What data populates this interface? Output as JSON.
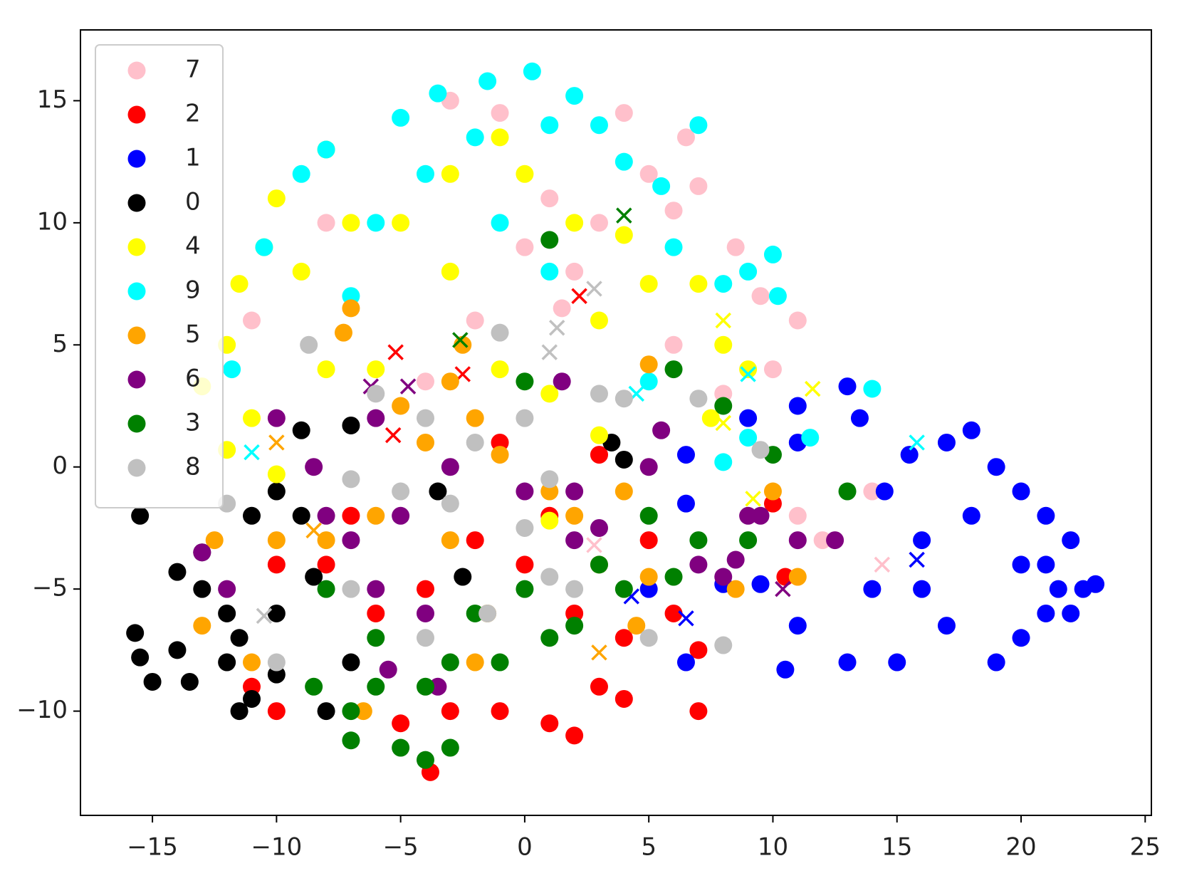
{
  "chart_data": {
    "type": "scatter",
    "xlim": [
      -17.9,
      25.25
    ],
    "ylim": [
      -14.27,
      17.9
    ],
    "xticks": [
      {
        "value": -15,
        "label": "−15"
      },
      {
        "value": -10,
        "label": "−10"
      },
      {
        "value": -5,
        "label": "−5"
      },
      0,
      5,
      10,
      15,
      20,
      25
    ],
    "yticks": [
      {
        "value": -10,
        "label": "−10"
      },
      {
        "value": -5,
        "label": "−5"
      },
      0,
      5,
      10,
      15
    ],
    "legend": "upper left",
    "series": [
      {
        "name": "7",
        "color": "#ffc0cb",
        "x": [
          -3,
          -1,
          4,
          6.5,
          5,
          6,
          7,
          8.5,
          9.5,
          10,
          11,
          2,
          0,
          -2,
          -4,
          1,
          3,
          8,
          14,
          12,
          11,
          -8,
          -11,
          6,
          3,
          1.5
        ],
        "y": [
          15,
          14.5,
          14.5,
          13.5,
          12,
          10.5,
          11.5,
          9,
          7,
          4,
          6,
          8,
          9,
          6,
          3.5,
          11,
          10,
          3,
          -1,
          -3,
          -2,
          10,
          6,
          5,
          0.5,
          6.5
        ],
        "crosses": {
          "x": [
            14.4,
            2.8
          ],
          "y": [
            -4,
            -3.2
          ]
        }
      },
      {
        "name": "2",
        "color": "#ff0000",
        "x": [
          -3.8,
          -5,
          -3,
          -1,
          1,
          2,
          4,
          3,
          -6,
          -4,
          -2,
          0,
          2,
          4,
          6,
          7,
          5,
          -8,
          -10,
          -11,
          -10,
          -1,
          3,
          10,
          10.5,
          7,
          1,
          -7
        ],
        "y": [
          -12.5,
          -10.5,
          -10,
          -10,
          -10.5,
          -11,
          -9.5,
          -9,
          -6,
          -5,
          -3,
          -4,
          -6,
          -7,
          -6,
          -10,
          -3,
          -4,
          -4,
          -9,
          -10,
          1,
          0.5,
          -1.5,
          -4.5,
          -7.5,
          -2,
          -2
        ],
        "crosses": {
          "x": [
            -5.2,
            -2.5,
            2.2,
            -5.3
          ],
          "y": [
            4.7,
            3.8,
            7,
            1.3
          ]
        }
      },
      {
        "name": "1",
        "color": "#0000ff",
        "x": [
          21,
          22,
          21.5,
          20,
          22.5,
          21,
          20,
          19,
          18,
          21,
          20,
          22,
          23,
          19,
          17,
          15,
          13,
          14,
          16,
          16,
          14.5,
          15.5,
          17,
          18,
          13,
          11,
          11,
          13.5,
          11,
          10.5,
          9.5,
          8,
          6.5,
          6.5,
          6.5,
          5,
          9
        ],
        "y": [
          -4,
          -3,
          -5,
          -4,
          -5,
          -2,
          -1,
          0,
          -2,
          -6,
          -7,
          -6,
          -4.8,
          -8,
          -6.5,
          -8,
          -8,
          -5,
          -5,
          -3,
          -1,
          0.5,
          1,
          1.5,
          3.3,
          2.5,
          1,
          2,
          -6.5,
          -8.3,
          -4.8,
          -4.8,
          -8,
          0.5,
          -1.5,
          -5,
          2
        ],
        "crosses": {
          "x": [
            15.8,
            4.3,
            6.5
          ],
          "y": [
            -3.8,
            -5.3,
            -6.2
          ]
        }
      },
      {
        "name": "0",
        "color": "#000000",
        "x": [
          -15.5,
          -15.7,
          -15.5,
          -15,
          -14,
          -13.5,
          -14,
          -13,
          -12,
          -11.5,
          -12,
          -11,
          -11.5,
          -10,
          -10,
          -11,
          -10,
          -9,
          -8.5,
          -9,
          -7,
          -3.5,
          -2.5,
          -7,
          -8,
          -13,
          3.5,
          4
        ],
        "y": [
          -2,
          -6.8,
          -7.8,
          -8.8,
          -7.5,
          -8.8,
          -4.3,
          -5,
          -6,
          -7,
          -8,
          -9.5,
          -10,
          -8.5,
          -6,
          -2,
          -1,
          -2,
          -4.5,
          1.5,
          1.7,
          -1,
          -4.5,
          -8,
          -10,
          -3.5,
          1,
          0.3
        ],
        "crosses": {
          "x": [],
          "y": []
        }
      },
      {
        "name": "4",
        "color": "#ffff00",
        "x": [
          -12,
          -13,
          -11,
          -12,
          -11.5,
          -10.5,
          -10,
          -8,
          -9,
          -7,
          -6,
          -8,
          -5,
          -3,
          -1,
          0,
          2,
          4,
          5,
          3,
          -1,
          1,
          -3,
          7,
          8,
          9,
          7.5,
          3,
          -10,
          1
        ],
        "y": [
          0.7,
          3.3,
          2,
          5,
          7.5,
          9,
          11,
          13,
          8,
          10,
          4,
          4,
          10,
          12,
          13.5,
          12,
          10,
          9.5,
          7.5,
          6,
          4,
          3,
          8,
          7.5,
          5,
          4,
          2,
          1.3,
          -0.3,
          -2.2
        ],
        "crosses": {
          "x": [
            11.6,
            8,
            9.2,
            8
          ],
          "y": [
            3.2,
            6,
            -1.3,
            1.8
          ]
        }
      },
      {
        "name": "9",
        "color": "#00ffff",
        "x": [
          0.3,
          -1.5,
          -3.5,
          -5,
          -8,
          -9,
          -10.5,
          -11.8,
          -7,
          -6,
          -4,
          -2,
          1,
          2,
          3,
          4,
          5.5,
          6,
          9,
          10,
          8,
          1,
          -1,
          14,
          11.5,
          9,
          8,
          5,
          10.2,
          7
        ],
        "y": [
          16.2,
          15.8,
          15.3,
          14.3,
          13,
          12,
          9,
          4,
          7,
          10,
          12,
          13.5,
          14,
          15.2,
          14,
          12.5,
          11.5,
          9,
          8,
          8.7,
          7.5,
          8,
          10,
          3.2,
          1.2,
          1.2,
          0.2,
          3.5,
          7,
          14
        ],
        "crosses": {
          "x": [
            15.8,
            9,
            -11,
            4.5
          ],
          "y": [
            1,
            3.8,
            0.6,
            3
          ]
        }
      },
      {
        "name": "5",
        "color": "#ffa500",
        "x": [
          -7,
          -7.3,
          -2.5,
          -3,
          -5,
          -2,
          -4,
          -1,
          1,
          2,
          4,
          3,
          -3,
          -6,
          -8,
          -10,
          -12.5,
          -13,
          -11,
          -1.5,
          -2,
          5,
          4.5,
          10,
          11,
          8.5,
          -6.5,
          5
        ],
        "y": [
          6.5,
          5.5,
          5,
          3.5,
          2.5,
          2,
          1,
          0.5,
          -1,
          -2,
          -1,
          -4,
          -3,
          -2,
          -3,
          -3,
          -3,
          -6.5,
          -8,
          -6,
          -8,
          -4.5,
          -6.5,
          -1,
          -4.5,
          -5,
          -10,
          4.2
        ],
        "crosses": {
          "x": [
            -10,
            3,
            -8.5
          ],
          "y": [
            1,
            -7.6,
            -2.6
          ]
        }
      },
      {
        "name": "6",
        "color": "#800080",
        "x": [
          -10,
          -8.5,
          -6,
          -3,
          0,
          1.5,
          2,
          3,
          5,
          7,
          8,
          9,
          9.5,
          8.5,
          11,
          12.5,
          -8,
          -7,
          -5,
          -4,
          -6,
          -13,
          -12,
          -3.5,
          -5.5,
          5.5,
          2
        ],
        "y": [
          2,
          0,
          2,
          0,
          -1,
          3.5,
          -3,
          -2.5,
          0,
          -4,
          -4.5,
          -2,
          -2,
          -3.8,
          -3,
          -3,
          -2,
          -3,
          -2,
          -6,
          -5,
          -3.5,
          -5,
          -9,
          -8.3,
          1.5,
          -1
        ],
        "crosses": {
          "x": [
            -6.2,
            -4.7,
            10.4
          ],
          "y": [
            3.3,
            3.3,
            -5
          ]
        }
      },
      {
        "name": "3",
        "color": "#008000",
        "x": [
          -4,
          -3,
          -5,
          -7,
          -7,
          -8.5,
          -6,
          -4,
          -3,
          -1,
          1,
          2,
          -2,
          0,
          3,
          5,
          6,
          7,
          9,
          10,
          13,
          8,
          6,
          0,
          1,
          -8,
          -6,
          4
        ],
        "y": [
          -12,
          -11.5,
          -11.5,
          -11.2,
          -10,
          -9,
          -9,
          -9,
          -8,
          -8,
          -7,
          -6.5,
          -6,
          -5,
          -4,
          -2,
          -4.5,
          -3,
          -3,
          0.5,
          -1,
          2.5,
          4,
          3.5,
          9.3,
          -5,
          -7,
          -5
        ],
        "crosses": {
          "x": [
            4,
            -2.6
          ],
          "y": [
            10.3,
            5.2
          ]
        }
      },
      {
        "name": "8",
        "color": "#c0c0c0",
        "x": [
          -8.7,
          -6,
          -4,
          -2,
          0,
          1,
          3,
          4,
          7,
          9.5,
          -7,
          -5,
          -3,
          0,
          1,
          -1.5,
          -7,
          -10,
          -12,
          8,
          5,
          2,
          -4,
          -1
        ],
        "y": [
          5,
          3,
          2,
          1,
          2,
          -0.5,
          3,
          2.8,
          2.8,
          0.7,
          -0.5,
          -1,
          -1.5,
          -2.5,
          -4.5,
          -6,
          -5,
          -8,
          -1.5,
          -7.3,
          -7,
          -5,
          -7,
          5.5
        ],
        "crosses": {
          "x": [
            1.3,
            1,
            2.8,
            -10.5
          ],
          "y": [
            5.7,
            4.7,
            7.3,
            -6.1
          ]
        }
      }
    ]
  }
}
